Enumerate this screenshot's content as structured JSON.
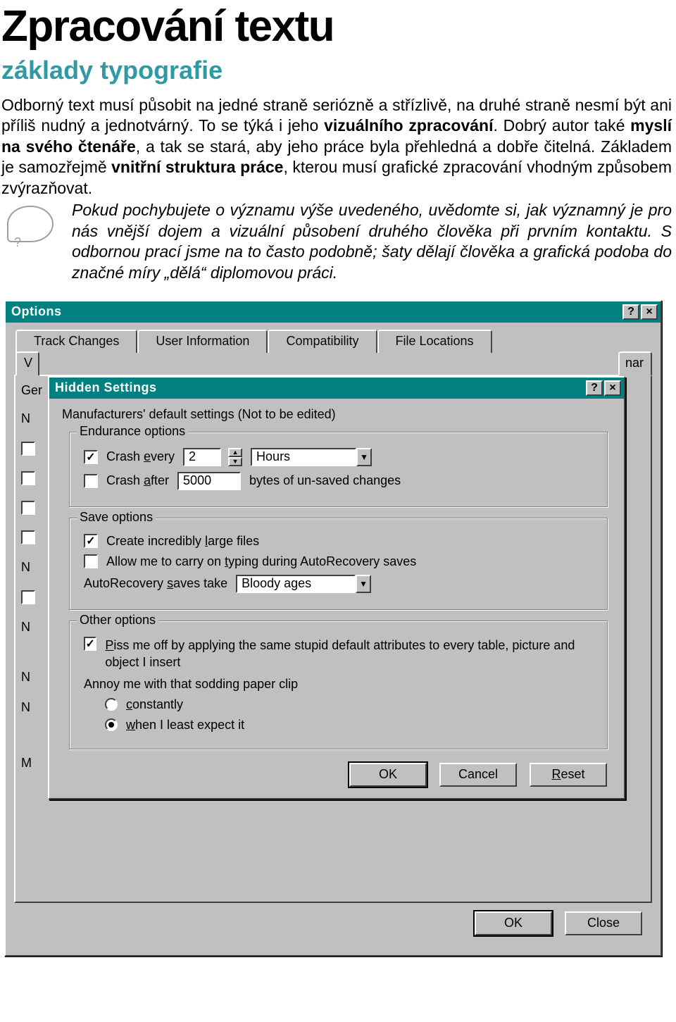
{
  "doc": {
    "title": "Zpracování textu",
    "subtitle": "základy typografie",
    "para_html": "Odborný text musí působit na jedné straně seriózně a střízlivě, na druhé straně nesmí být ani příliš nudný a jednotvárný. To se týká i jeho <b>vizuálního zpracování</b>. Dobrý autor také <b>myslí na svého čtenáře</b>, a tak se stará, aby jeho práce byla přehledná a dobře čitelná. Základem je samozřejmě <b>vnitřní struktura práce</b>, kterou musí grafické zpracování vhodným způsobem zvýrazňovat.",
    "note_html": "Pokud pochybujete o významu výše uvedeného, uvědomte si, jak významný je pro nás vnější dojem a vizuální působení druhého člověka při prvním kontaktu. S odbornou prací jsme na to často podobně; šaty dělají člověka a grafická podoba do značné míry „dělá“ diplomovou práci."
  },
  "outer": {
    "title": "Options",
    "tabs_row1": [
      "Track Changes",
      "User Information",
      "Compatibility",
      "File Locations"
    ],
    "tabs_row2_left": "V",
    "tabs_row2_right": "nar",
    "panel_label_clip": "Ger",
    "left_stub_letter": "M",
    "buttons": {
      "ok": "OK",
      "close": "Close"
    }
  },
  "inner": {
    "title": "Hidden Settings",
    "instr": "Manufacturers' default settings   (Not to be edited)",
    "endurance": {
      "legend": "Endurance options",
      "crash_every_label": "Crash every",
      "crash_every_u": "e",
      "crash_every_value": "2",
      "crash_every_unit": "Hours",
      "crash_after_label": "Crash after",
      "crash_after_u": "a",
      "crash_after_value": "5000",
      "crash_after_suffix": "bytes of un-saved changes"
    },
    "save": {
      "legend": "Save options",
      "large_files_label": "Create incredibly large files",
      "large_files_u": "l",
      "typing_label": "Allow me to carry on typing during AutoRecovery saves",
      "typing_u": "t",
      "autorec_label": "AutoRecovery saves take",
      "autorec_u": "s",
      "autorec_value": "Bloody ages"
    },
    "other": {
      "legend": "Other options",
      "piss_label_html": "<span class='u'>P</span>iss me off by applying the same stupid default attributes to every table, picture and object I insert",
      "annoy_label": "Annoy me with that sodding paper clip",
      "radio_constantly": "constantly",
      "radio_constantly_u": "c",
      "radio_least": "when I least expect it",
      "radio_least_u": "w"
    },
    "buttons": {
      "ok": "OK",
      "cancel": "Cancel",
      "reset": "Reset",
      "reset_u": "R"
    }
  },
  "colors": {
    "teal": "#008080",
    "gray": "#c0c0c0",
    "subtitle": "#2f9aa3"
  }
}
